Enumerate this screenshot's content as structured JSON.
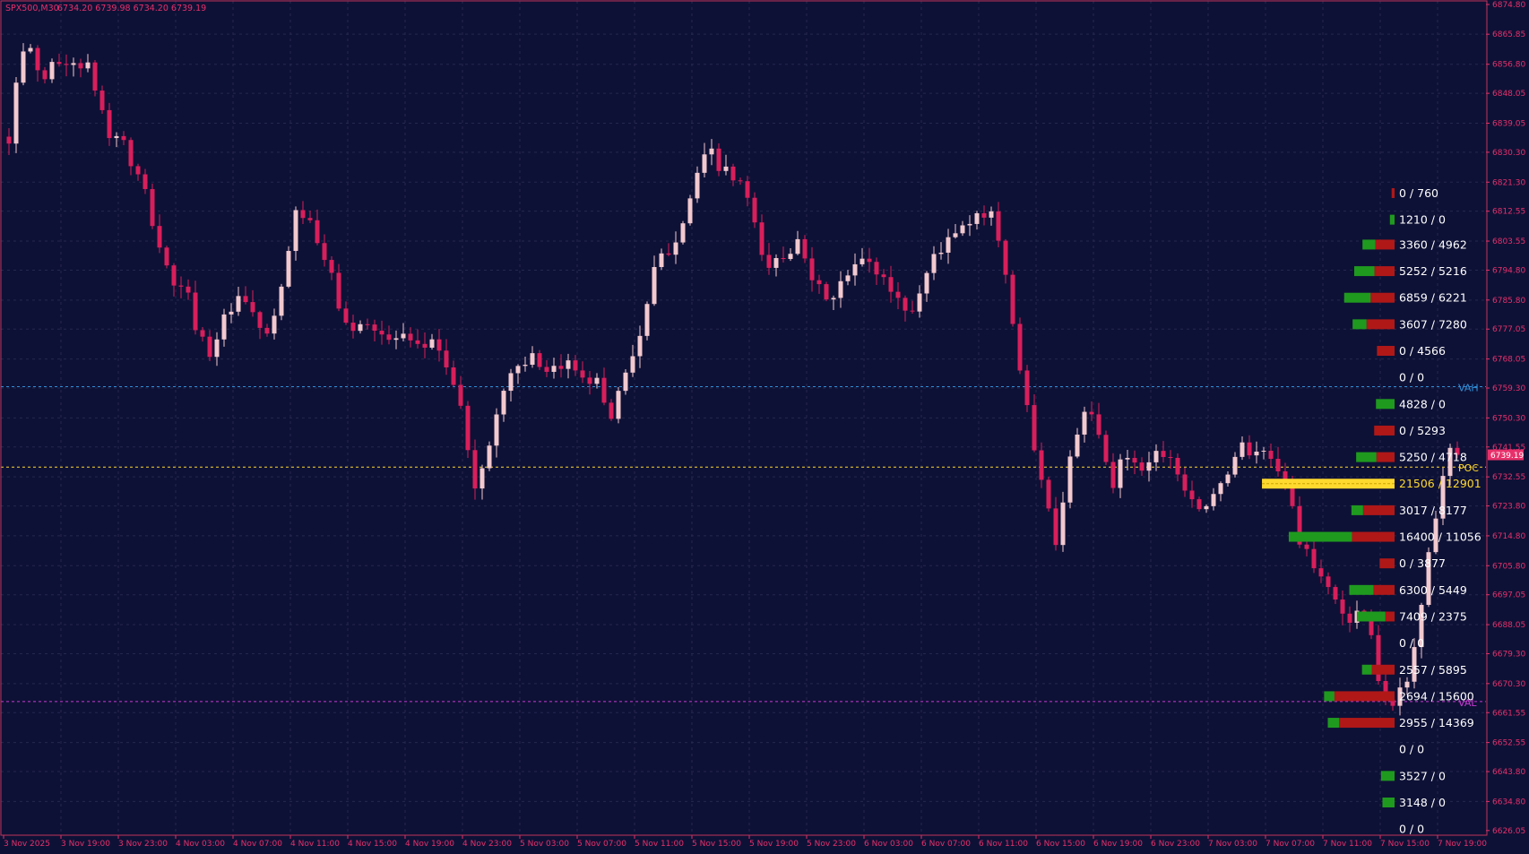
{
  "header": {
    "symbol": "SPX500,M30",
    "ohlc": "6734.20 6739.98 6734.20 6739.19"
  },
  "colors": {
    "background": "#0e1136",
    "grid": "#25284e",
    "bull_candle": "#f2c9cf",
    "bear_candle": "#d81f5b",
    "axis_text": "#e8306b",
    "vah": "#2f8fd8",
    "poc": "#ffd92e",
    "val": "#c43bd0",
    "buy_bar": "#1f9a1f",
    "sell_bar": "#b01818",
    "price_tag": "#e8306b"
  },
  "chart_data": {
    "type": "candlestick",
    "symbol": "SPX500",
    "timeframe": "M30",
    "ylim": [
      6626.0,
      6874.8
    ],
    "y_ticks": [
      "6874.80",
      "6865.85",
      "6856.80",
      "6848.05",
      "6839.05",
      "6830.30",
      "6821.30",
      "6812.55",
      "6803.55",
      "6794.80",
      "6785.80",
      "6777.05",
      "6768.05",
      "6759.30",
      "6750.30",
      "6741.55",
      "6732.55",
      "6723.80",
      "6714.80",
      "6705.80",
      "6697.05",
      "6688.05",
      "6679.30",
      "6670.30",
      "6661.55",
      "6652.55",
      "6643.80",
      "6634.80",
      "6626.05"
    ],
    "x_labels": [
      "3 Nov 2025",
      "3 Nov 19:00",
      "3 Nov 23:00",
      "4 Nov 03:00",
      "4 Nov 07:00",
      "4 Nov 11:00",
      "4 Nov 15:00",
      "4 Nov 19:00",
      "4 Nov 23:00",
      "5 Nov 03:00",
      "5 Nov 07:00",
      "5 Nov 11:00",
      "5 Nov 15:00",
      "5 Nov 19:00",
      "5 Nov 23:00",
      "6 Nov 03:00",
      "6 Nov 07:00",
      "6 Nov 11:00",
      "6 Nov 15:00",
      "6 Nov 19:00",
      "6 Nov 23:00",
      "7 Nov 03:00",
      "7 Nov 07:00",
      "7 Nov 11:00",
      "7 Nov 15:00",
      "7 Nov 19:00"
    ],
    "current_price": "6739.19",
    "key_path": [
      6835,
      6858,
      6862,
      6850,
      6860,
      6855,
      6858,
      6856,
      6847,
      6835,
      6836,
      6826,
      6820,
      6808,
      6796,
      6790,
      6787,
      6776,
      6770,
      6778,
      6783,
      6786,
      6780,
      6775,
      6780,
      6800,
      6815,
      6808,
      6800,
      6792,
      6780,
      6775,
      6781,
      6777,
      6773,
      6775,
      6772,
      6770,
      6775,
      6768,
      6760,
      6745,
      6728,
      6740,
      6756,
      6763,
      6768,
      6768,
      6762,
      6764,
      6767,
      6765,
      6763,
      6760,
      6750,
      6762,
      6770,
      6778,
      6796,
      6800,
      6806,
      6815,
      6826,
      6830,
      6825,
      6822,
      6820,
      6806,
      6795,
      6798,
      6800,
      6808,
      6790,
      6788,
      6786,
      6792,
      6796,
      6798,
      6794,
      6790,
      6785,
      6782,
      6790,
      6800,
      6802,
      6806,
      6808,
      6810,
      6815,
      6802,
      6780,
      6762,
      6740,
      6730,
      6712,
      6735,
      6748,
      6752,
      6743,
      6728,
      6740,
      6738,
      6735,
      6740,
      6741,
      6733,
      6728,
      6723,
      6725,
      6730,
      6740,
      6742,
      6738,
      6740,
      6735,
      6726,
      6712,
      6705,
      6701,
      6697,
      6688,
      6693,
      6690,
      6671,
      6663,
      6668,
      6678,
      6700,
      6720,
      6738,
      6741
    ],
    "volume_profile": {
      "levels": [
        {
          "label": "0 / 760",
          "price": 6818.0,
          "buy": 0,
          "sell": 760
        },
        {
          "label": "1210 / 0",
          "price": 6810.0,
          "buy": 1210,
          "sell": 0
        },
        {
          "label": "3360 / 4962",
          "price": 6802.5,
          "buy": 3360,
          "sell": 4962
        },
        {
          "label": "5252 / 5216",
          "price": 6794.5,
          "buy": 5252,
          "sell": 5216
        },
        {
          "label": "6859 / 6221",
          "price": 6786.5,
          "buy": 6859,
          "sell": 6221
        },
        {
          "label": "3607 / 7280",
          "price": 6778.5,
          "buy": 3607,
          "sell": 7280
        },
        {
          "label": "0 / 4566",
          "price": 6770.5,
          "buy": 0,
          "sell": 4566
        },
        {
          "label": "0 / 0",
          "price": 6762.5,
          "buy": 0,
          "sell": 0
        },
        {
          "label": "4828 / 0",
          "price": 6754.5,
          "buy": 4828,
          "sell": 0
        },
        {
          "label": "0 / 5293",
          "price": 6746.5,
          "buy": 0,
          "sell": 5293
        },
        {
          "label": "5250 / 4718",
          "price": 6738.5,
          "buy": 5250,
          "sell": 4718
        },
        {
          "label": "21506 / 12901",
          "price": 6730.5,
          "buy": 21506,
          "sell": 12901,
          "poc": true
        },
        {
          "label": "3017 / 8177",
          "price": 6722.5,
          "buy": 3017,
          "sell": 8177
        },
        {
          "label": "16400 / 11056",
          "price": 6714.5,
          "buy": 16400,
          "sell": 11056
        },
        {
          "label": "0 / 3877",
          "price": 6706.5,
          "buy": 0,
          "sell": 3877
        },
        {
          "label": "6300 / 5449",
          "price": 6698.5,
          "buy": 6300,
          "sell": 5449
        },
        {
          "label": "7409 / 2375",
          "price": 6690.5,
          "buy": 7409,
          "sell": 2375
        },
        {
          "label": "0 / 0",
          "price": 6682.5,
          "buy": 0,
          "sell": 0
        },
        {
          "label": "2557 / 5895",
          "price": 6674.5,
          "buy": 2557,
          "sell": 5895
        },
        {
          "label": "2694 / 15600",
          "price": 6666.5,
          "buy": 2694,
          "sell": 15600
        },
        {
          "label": "2955 / 14369",
          "price": 6658.5,
          "buy": 2955,
          "sell": 14369
        },
        {
          "label": "0 / 0",
          "price": 6650.5,
          "buy": 0,
          "sell": 0
        },
        {
          "label": "3527 / 0",
          "price": 6642.5,
          "buy": 3527,
          "sell": 0
        },
        {
          "label": "3148 / 0",
          "price": 6634.5,
          "buy": 3148,
          "sell": 0
        },
        {
          "label": "0 / 0",
          "price": 6626.5,
          "buy": 0,
          "sell": 0
        }
      ],
      "vah": {
        "label": "VAH",
        "price": 6759.7
      },
      "poc": {
        "label": "POC",
        "price": 6735.5
      },
      "val": {
        "label": "VAL",
        "price": 6664.9
      }
    }
  }
}
